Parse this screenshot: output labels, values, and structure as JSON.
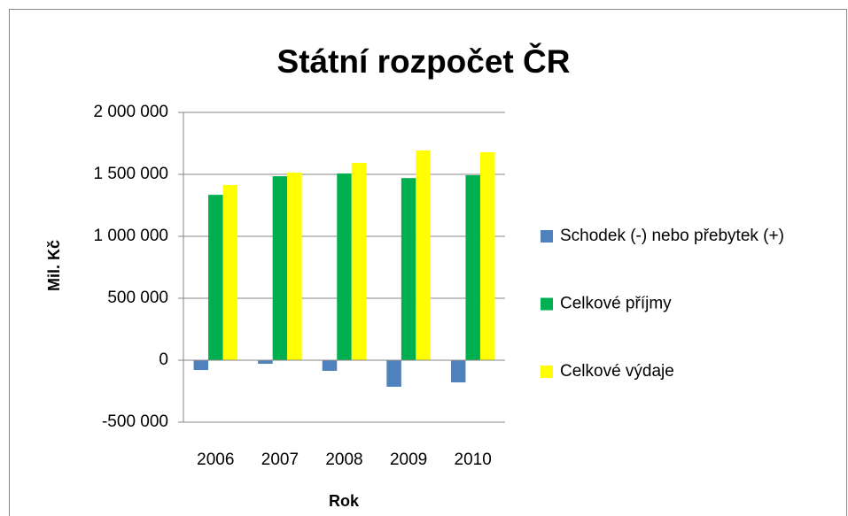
{
  "chart_data": {
    "type": "bar",
    "title": "Státní rozpočet ČR",
    "x_label": "Rok",
    "y_label": "Mil. Kč",
    "categories": [
      "2006",
      "2007",
      "2008",
      "2009",
      "2010"
    ],
    "series": [
      {
        "name": "Schodek (-) nebo přebytek (+)",
        "color": "#4f81bd",
        "values": [
          -79000,
          -29000,
          -86000,
          -214000,
          -179000
        ]
      },
      {
        "name": "Celkové příjmy",
        "color": "#00b050",
        "values": [
          1335000,
          1485000,
          1507000,
          1470000,
          1493000
        ]
      },
      {
        "name": "Celkové výdaje",
        "color": "#ffff00",
        "values": [
          1414000,
          1514000,
          1593000,
          1693000,
          1679000
        ]
      }
    ],
    "ylim": [
      -500000,
      2000000
    ],
    "yticks": [
      {
        "value": -500000,
        "label": "-500 000"
      },
      0,
      {
        "value": 500000,
        "label": "500 000"
      },
      {
        "value": 1000000,
        "label": "1 000 000"
      },
      {
        "value": 1500000,
        "label": "1 500 000"
      },
      {
        "value": 2000000,
        "label": "2 000 000"
      }
    ],
    "grid": true,
    "legend": "right"
  }
}
